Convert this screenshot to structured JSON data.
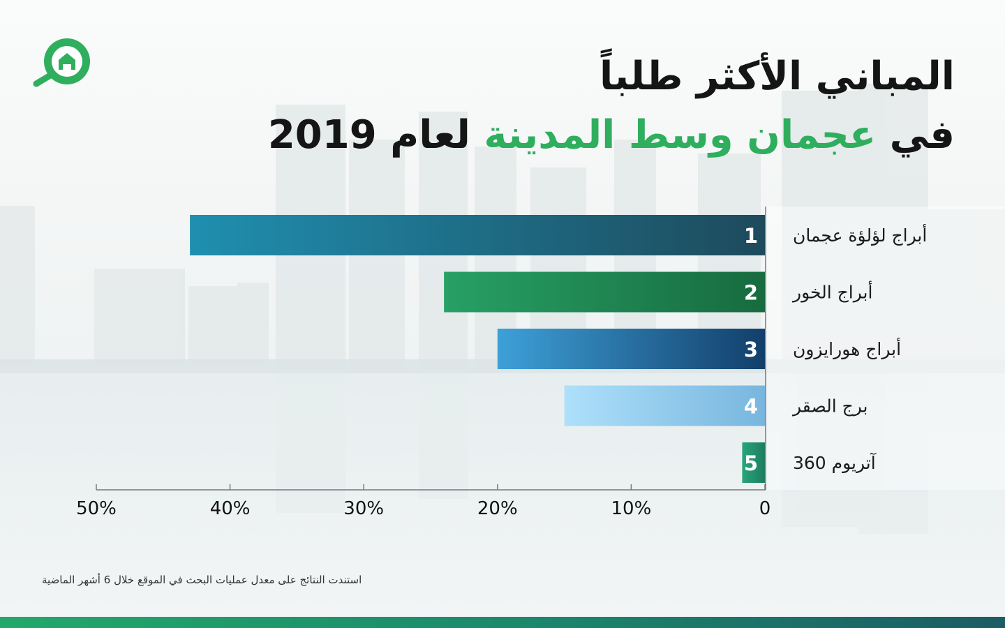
{
  "header": {
    "title_line1": "المباني الأكثر طلباً",
    "title_line2_prefix": "في",
    "title_line2_highlight": "عجمان وسط المدينة",
    "title_line2_suffix": "لعام 2019"
  },
  "logo": {
    "icon": "house-search-icon",
    "color": "#2fae5e"
  },
  "footnote": "استندت النتائج على معدل عمليات البحث في الموقع خلال 6 أشهر الماضية",
  "chart_data": {
    "type": "bar",
    "orientation": "horizontal",
    "x_direction": "right-to-left",
    "categories": [
      "أبراج لؤلؤة عجمان",
      "أبراج الخور",
      "أبراج هورايزون",
      "برج الصقر",
      "آتريوم 360"
    ],
    "ranks": [
      "1",
      "2",
      "3",
      "4",
      "5"
    ],
    "values": [
      43,
      24,
      20,
      15,
      1.7
    ],
    "value_unit": "%",
    "xlim": [
      0,
      50
    ],
    "ticks": [
      0,
      10,
      20,
      30,
      40,
      50
    ],
    "tick_labels": [
      "0",
      "10%",
      "20%",
      "30%",
      "40%",
      "50%"
    ],
    "bar_gradients": [
      [
        "#1f8fb0",
        "#1e4a5c"
      ],
      [
        "#27a065",
        "#176b3f"
      ],
      [
        "#3ea0d8",
        "#123f6a"
      ],
      [
        "#aee0fb",
        "#78b6de"
      ],
      [
        "#27a57a",
        "#1d7d60"
      ]
    ],
    "title": "",
    "xlabel": "",
    "ylabel": "",
    "grid": false,
    "legend": "none"
  }
}
